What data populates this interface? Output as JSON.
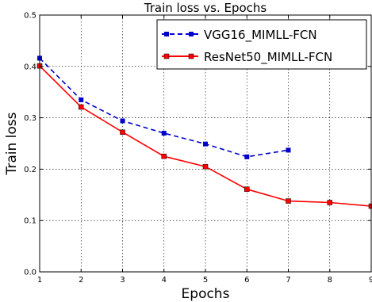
{
  "chart_data": {
    "type": "line",
    "title": "Train loss vs. Epochs",
    "xlabel": "Epochs",
    "ylabel": "Train loss",
    "xlim": [
      1,
      9
    ],
    "ylim": [
      0.0,
      0.5
    ],
    "xticks": [
      "1",
      "2",
      "3",
      "4",
      "5",
      "6",
      "7",
      "8",
      "9"
    ],
    "yticks": [
      "0.0",
      "0.1",
      "0.2",
      "0.3",
      "0.4",
      "0.5"
    ],
    "grid": true,
    "legend_position": "top-right",
    "series": [
      {
        "name": "VGG16_MIMLL-FCN",
        "color": "#0000cc",
        "line_style": "dashed",
        "marker": "square",
        "x": [
          1,
          2,
          3,
          4,
          5,
          6,
          7
        ],
        "y": [
          0.416,
          0.335,
          0.294,
          0.27,
          0.249,
          0.224,
          0.237
        ]
      },
      {
        "name": "ResNet50_MIMLL-FCN",
        "color": "#ff0000",
        "line_style": "solid",
        "marker": "square",
        "x": [
          1,
          2,
          3,
          4,
          5,
          6,
          7,
          8,
          9
        ],
        "y": [
          0.401,
          0.321,
          0.272,
          0.225,
          0.205,
          0.161,
          0.138,
          0.135,
          0.128
        ]
      }
    ]
  }
}
